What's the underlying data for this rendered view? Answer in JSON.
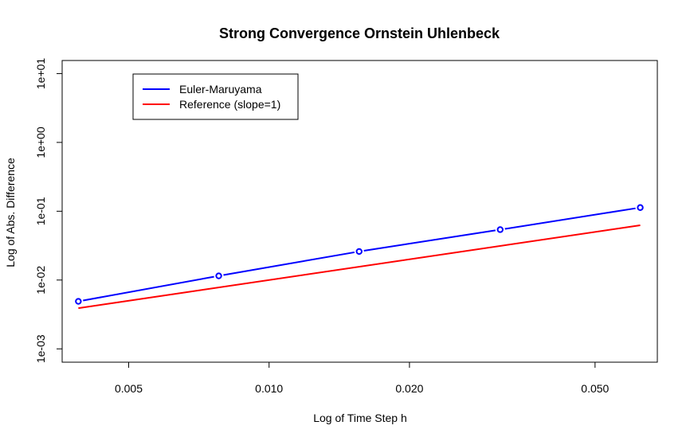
{
  "chart_data": {
    "type": "line",
    "title": "Strong Convergence Ornstein Uhlenbeck",
    "xlabel": "Log of Time Step h",
    "ylabel": "Log of Abs. Difference",
    "x_scale": "log",
    "y_scale": "log",
    "xlim": [
      0.0036,
      0.068
    ],
    "ylim": [
      0.00064,
      15.5
    ],
    "x_ticks": [
      {
        "value": 0.005,
        "label": "0.005"
      },
      {
        "value": 0.01,
        "label": "0.010"
      },
      {
        "value": 0.02,
        "label": "0.020"
      },
      {
        "value": 0.05,
        "label": "0.050"
      }
    ],
    "y_ticks": [
      {
        "value": 0.001,
        "label": "1e-03"
      },
      {
        "value": 0.01,
        "label": "1e-02"
      },
      {
        "value": 0.1,
        "label": "1e-01"
      },
      {
        "value": 1,
        "label": "1e+00"
      },
      {
        "value": 10,
        "label": "1e+01"
      }
    ],
    "legend": {
      "position": "top-left",
      "entries": [
        {
          "label": "Euler-Maruyama",
          "color": "#0000ff"
        },
        {
          "label": "Reference (slope=1)",
          "color": "#ff0000"
        }
      ]
    },
    "series": [
      {
        "name": "Euler-Maruyama",
        "color": "#0000ff",
        "style": "line-with-points",
        "x": [
          0.0039,
          0.0078,
          0.0156,
          0.0313,
          0.0625
        ],
        "y": [
          0.0049,
          0.0115,
          0.026,
          0.054,
          0.113
        ]
      },
      {
        "name": "Reference (slope=1)",
        "color": "#ff0000",
        "style": "line",
        "x": [
          0.0039,
          0.0625
        ],
        "y": [
          0.0039,
          0.0625
        ]
      }
    ]
  }
}
